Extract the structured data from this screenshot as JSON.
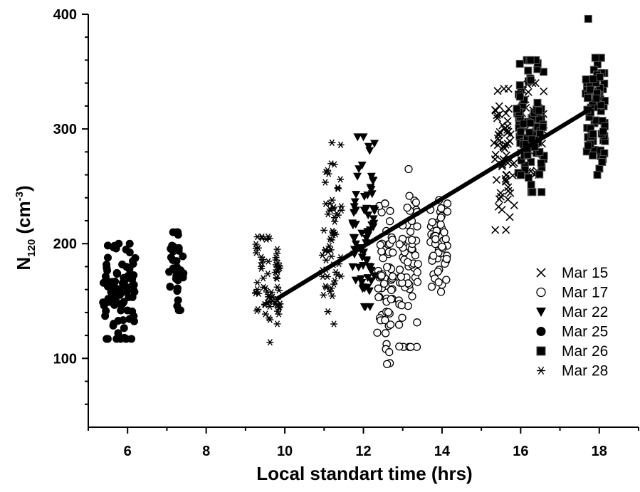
{
  "chart_data": {
    "type": "scatter",
    "xlabel": "Local standart time (hrs)",
    "ylabel": {
      "main": "N",
      "sub": "120",
      "unit_open": " (cm",
      "unit_sup": "-3",
      "unit_close": ")"
    },
    "xlim": [
      5.0,
      19.0
    ],
    "ylim": [
      40,
      400
    ],
    "x_ticks": [
      6,
      8,
      10,
      12,
      14,
      16,
      18
    ],
    "y_ticks": [
      100,
      200,
      300,
      400
    ],
    "legend_position": "lower-right",
    "fit_line": {
      "x": [
        9.8,
        17.8
      ],
      "y": [
        152,
        318
      ]
    },
    "series": [
      {
        "name": "Mar 15",
        "marker": "x",
        "clusters": [
          {
            "x": [
              15.3,
              15.85
            ],
            "y": [
              212,
              335
            ],
            "n": 60
          },
          {
            "x": [
              16.0,
              16.6
            ],
            "y": [
              260,
              340
            ],
            "n": 40
          }
        ]
      },
      {
        "name": "Mar 17",
        "marker": "open-circle",
        "clusters": [
          {
            "x": [
              12.35,
              12.75
            ],
            "y": [
              95,
              235
            ],
            "n": 60
          },
          {
            "x": [
              12.9,
              13.4
            ],
            "y": [
              110,
              265
            ],
            "n": 60
          },
          {
            "x": [
              13.7,
              14.15
            ],
            "y": [
              158,
              238
            ],
            "n": 55
          }
        ]
      },
      {
        "name": "Mar 22",
        "marker": "filled-triangle-down",
        "clusters": [
          {
            "x": [
              11.7,
              12.3
            ],
            "y": [
              145,
              293
            ],
            "n": 70
          }
        ]
      },
      {
        "name": "Mar 25",
        "marker": "filled-circle",
        "clusters": [
          {
            "x": [
              5.35,
              6.2
            ],
            "y": [
              117,
              200
            ],
            "n": 90
          },
          {
            "x": [
              7.05,
              7.45
            ],
            "y": [
              142,
              210
            ],
            "n": 30
          }
        ]
      },
      {
        "name": "Mar 26",
        "marker": "filled-square",
        "clusters": [
          {
            "x": [
              15.9,
              16.6
            ],
            "y": [
              245,
              360
            ],
            "n": 90
          },
          {
            "x": [
              17.65,
              18.15
            ],
            "y": [
              260,
              362
            ],
            "n": 70
          },
          {
            "x": [
              17.72,
              17.72
            ],
            "y": [
              396,
              396
            ],
            "n": 1
          }
        ]
      },
      {
        "name": "Mar 28",
        "marker": "asterisk",
        "clusters": [
          {
            "x": [
              9.25,
              9.9
            ],
            "y": [
              114,
              206
            ],
            "n": 70
          },
          {
            "x": [
              10.95,
              11.45
            ],
            "y": [
              130,
              288
            ],
            "n": 60
          }
        ]
      }
    ]
  }
}
